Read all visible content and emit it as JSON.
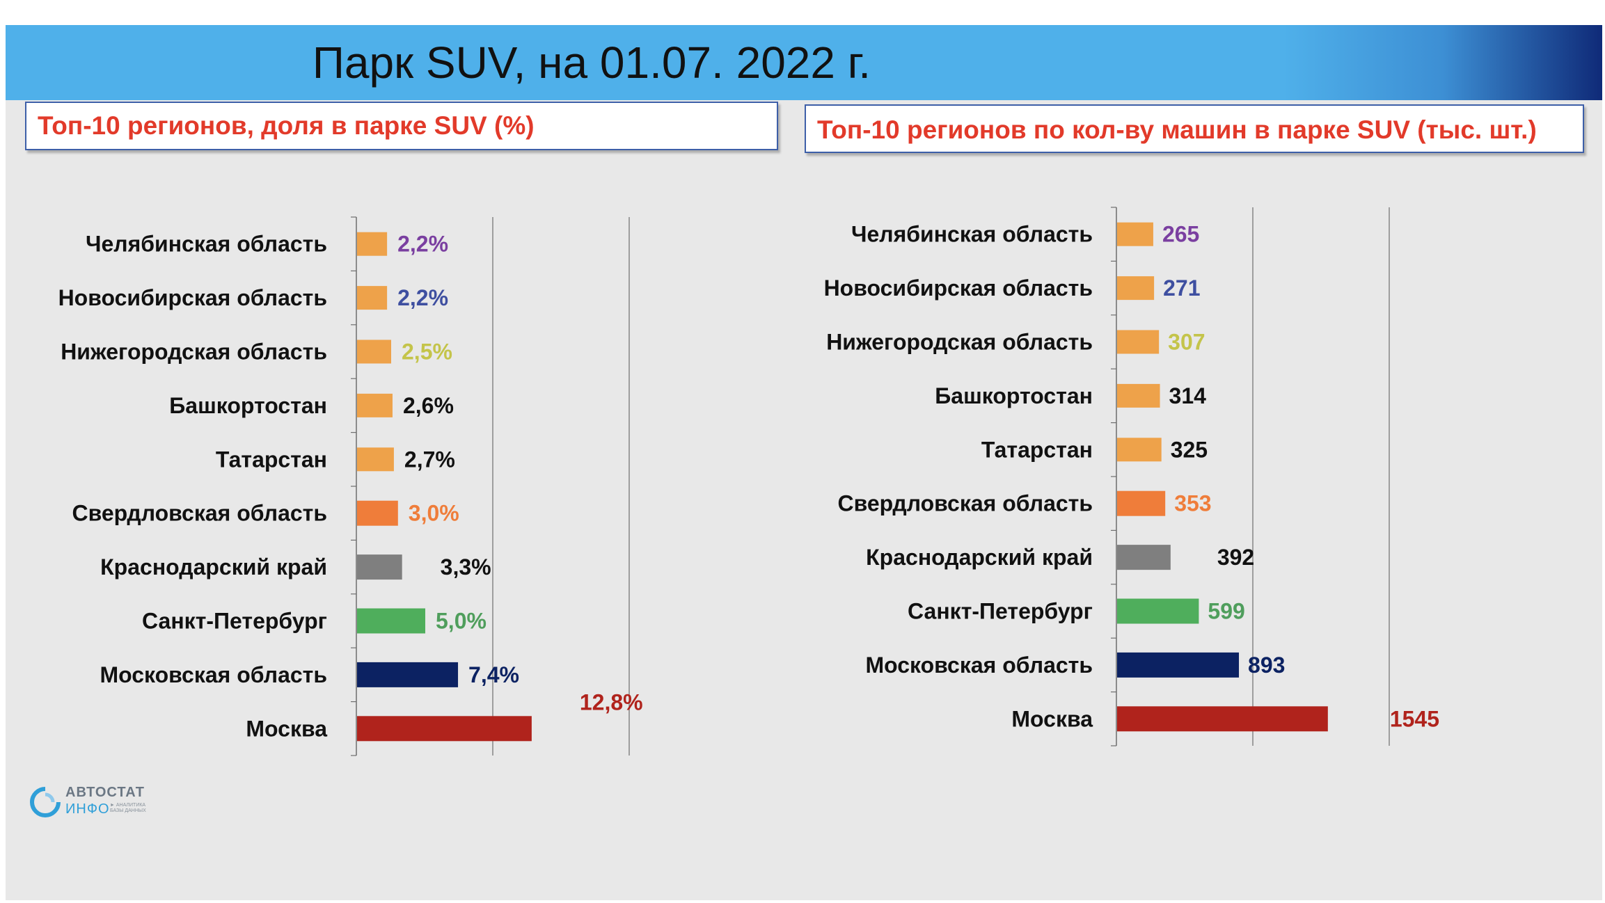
{
  "header": {
    "title": "Парк  SUV, на 01.07. 2022 г."
  },
  "panels": {
    "left_title": "Топ-10 регионов, доля в парке SUV (%)",
    "right_title": "Топ-10 регионов по кол-ву машин в парке SUV (тыс. шт.)"
  },
  "logo": {
    "line1": "АВТОСТАТ",
    "line2": "ИНФО",
    "tagline": "► АНАЛИТИКА БАЗЫ ДАННЫХ"
  },
  "chart_data": [
    {
      "type": "bar",
      "orientation": "horizontal",
      "title": "Топ-10 регионов, доля в парке SUV (%)",
      "categories": [
        "Челябинская область",
        "Новосибирская область",
        "Нижегородская область",
        "Башкортостан",
        "Татарстан",
        "Свердловская область",
        "Краснодарский край",
        "Санкт-Петербург",
        "Московская область",
        "Москва"
      ],
      "values": [
        2.2,
        2.2,
        2.5,
        2.6,
        2.7,
        3.0,
        3.3,
        5.0,
        7.4,
        12.8
      ],
      "data_labels": [
        "2,2%",
        "2,2%",
        "2,5%",
        "2,6%",
        "2,7%",
        "3,0%",
        "3,3%",
        "5,0%",
        "7,4%",
        "12,8%"
      ],
      "bar_colors": [
        "#eea24a",
        "#eea24a",
        "#eea24a",
        "#eea24a",
        "#eea24a",
        "#ef7d3a",
        "#7f7f7f",
        "#4fae5c",
        "#0c2262",
        "#b0231c"
      ],
      "label_colors": [
        "#7a3fa0",
        "#3e4fa0",
        "#c4c44a",
        "#111111",
        "#111111",
        "#ef7d3a",
        "#111111",
        "#4f9e5c",
        "#0c2262",
        "#b0231c"
      ],
      "xlim": [
        0,
        20
      ],
      "grid": true,
      "legend": "none"
    },
    {
      "type": "bar",
      "orientation": "horizontal",
      "title": "Топ-10 регионов по кол-ву машин в парке SUV (тыс. шт.)",
      "categories": [
        "Челябинская область",
        "Новосибирская область",
        "Нижегородская область",
        "Башкортостан",
        "Татарстан",
        "Свердловская область",
        "Краснодарский край",
        "Санкт-Петербург",
        "Московская область",
        "Москва"
      ],
      "values": [
        265,
        271,
        307,
        314,
        325,
        353,
        392,
        599,
        893,
        1545
      ],
      "data_labels": [
        "265",
        "271",
        "307",
        "314",
        "325",
        "353",
        "392",
        "599",
        "893",
        "1545"
      ],
      "bar_colors": [
        "#eea24a",
        "#eea24a",
        "#eea24a",
        "#eea24a",
        "#eea24a",
        "#ef7d3a",
        "#7f7f7f",
        "#4fae5c",
        "#0c2262",
        "#b0231c"
      ],
      "label_colors": [
        "#7a3fa0",
        "#3e4fa0",
        "#c4c44a",
        "#111111",
        "#111111",
        "#ef7d3a",
        "#111111",
        "#4f9e5c",
        "#0c2262",
        "#b0231c"
      ],
      "xlim": [
        0,
        2000
      ],
      "grid": true,
      "legend": "none"
    }
  ]
}
